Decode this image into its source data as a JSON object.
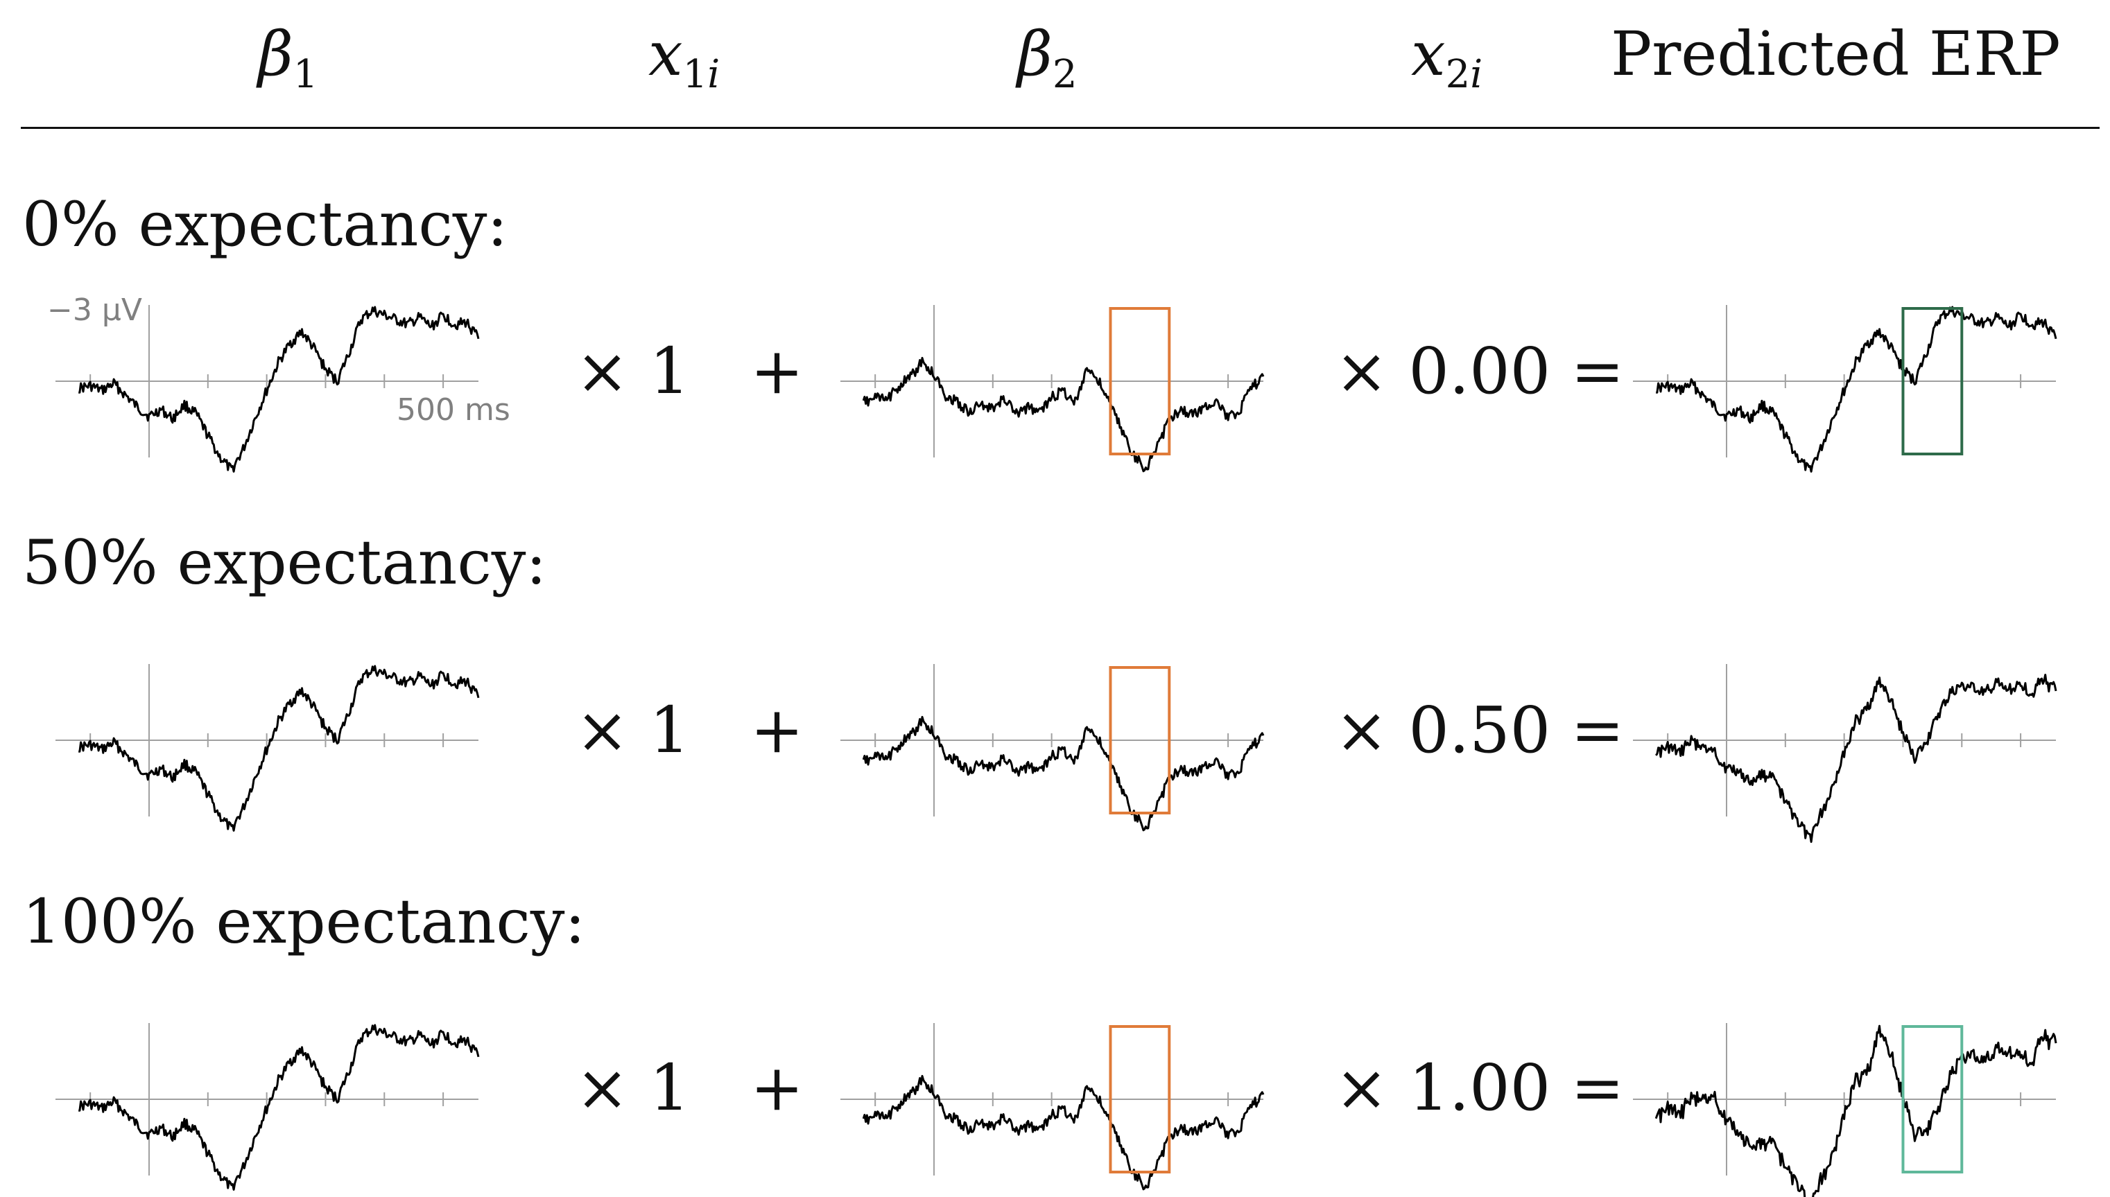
{
  "header": {
    "beta1": "β",
    "beta1_sub": "1",
    "x1i": "x",
    "x1i_sub_num": "1",
    "x1i_sub_i": "i",
    "beta2": "β",
    "beta2_sub": "2",
    "x2i": "x",
    "x2i_sub_num": "2",
    "x2i_sub_i": "i",
    "predicted": "Predicted ERP"
  },
  "scale_labels": {
    "amplitude": "−3 µV",
    "time": "500 ms"
  },
  "rows": [
    {
      "label": "0% expectancy:",
      "x1": "× 1",
      "plus": "+",
      "x2": "× 0.00 =",
      "box_color": "#2e6b4a"
    },
    {
      "label": "50% expectancy:",
      "x1": "× 1",
      "plus": "+",
      "x2": "× 0.50 ="
    },
    {
      "label": "100% expectancy:",
      "x1": "× 1",
      "plus": "+",
      "x2": "× 1.00 =",
      "box_color": "#5fb89a"
    }
  ],
  "colors": {
    "beta2_window": "#e07b39",
    "axis": "#a0a0a0",
    "trace": "#000000"
  },
  "chart_data": {
    "type": "line",
    "note_units": "time in ms, amplitude in µV, negative up",
    "time_ms": [
      -300,
      -250,
      -200,
      -150,
      -100,
      -50,
      0,
      50,
      100,
      150,
      200,
      250,
      300,
      350,
      400,
      450,
      500,
      550,
      600,
      650,
      700,
      750,
      800,
      850,
      900,
      950,
      1000,
      1050,
      1100,
      1150,
      1200,
      1250,
      1300,
      1350,
      1400
    ],
    "beta1_uV": [
      0.3,
      0.2,
      0.4,
      0.1,
      0.6,
      1.1,
      1.5,
      1.2,
      1.6,
      1.0,
      1.4,
      2.3,
      3.2,
      3.8,
      2.9,
      1.6,
      0.4,
      -0.8,
      -1.6,
      -2.1,
      -1.4,
      -0.5,
      0.0,
      -1.2,
      -2.6,
      -3.0,
      -2.8,
      -2.6,
      -2.4,
      -2.7,
      -2.3,
      -2.8,
      -2.4,
      -2.5,
      -1.8
    ],
    "beta2_uV": [
      0.9,
      0.7,
      0.8,
      0.2,
      -0.2,
      -0.8,
      -0.3,
      0.6,
      0.9,
      1.3,
      1.0,
      1.2,
      0.7,
      1.4,
      1.1,
      1.3,
      0.7,
      0.4,
      0.9,
      -0.6,
      0.0,
      1.0,
      2.1,
      3.2,
      3.7,
      2.8,
      1.6,
      1.2,
      1.4,
      1.1,
      0.8,
      1.6,
      1.2,
      0.3,
      -0.2
    ],
    "beta2_window_ms": [
      750,
      1000
    ],
    "x2_values": [
      0.0,
      0.5,
      1.0
    ]
  }
}
